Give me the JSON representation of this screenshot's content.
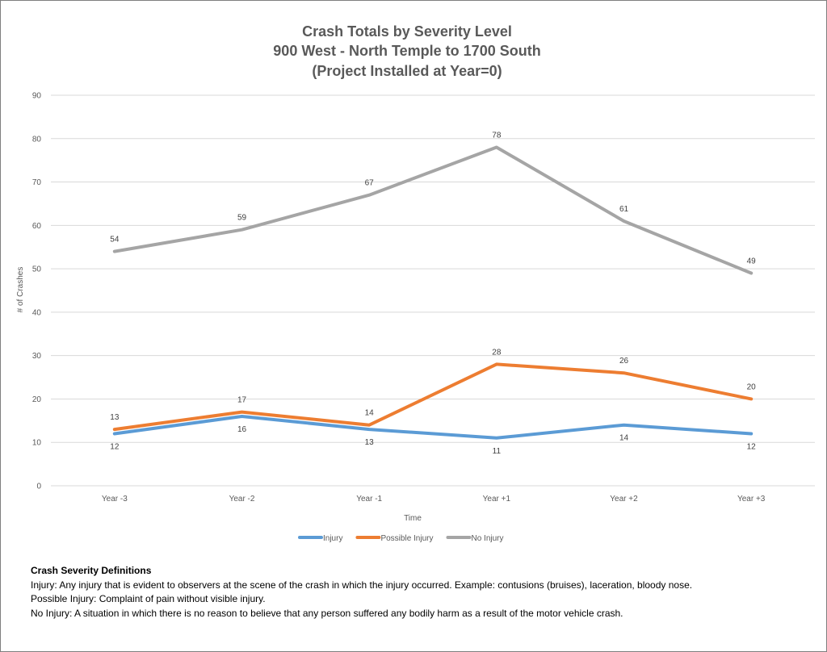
{
  "chart_data": {
    "type": "line",
    "title": [
      "Crash Totals by Severity Level",
      "900 West - North Temple to 1700 South",
      "(Project Installed at Year=0)"
    ],
    "xlabel": "Time",
    "ylabel": "# of Crashes",
    "categories": [
      "Year -3",
      "Year -2",
      "Year -1",
      "Year +1",
      "Year +2",
      "Year +3"
    ],
    "ylim": [
      0,
      90
    ],
    "yticks": [
      0,
      10,
      20,
      30,
      40,
      50,
      60,
      70,
      80,
      90
    ],
    "grid": true,
    "legend_position": "bottom",
    "series": [
      {
        "name": "Injury",
        "color": "#5b9bd5",
        "label_side": "below",
        "values": [
          12,
          16,
          13,
          11,
          14,
          12
        ]
      },
      {
        "name": "Possible Injury",
        "color": "#ed7d31",
        "label_side": "above",
        "values": [
          13,
          17,
          14,
          28,
          26,
          20
        ]
      },
      {
        "name": "No Injury",
        "color": "#a5a5a5",
        "label_side": "above",
        "values": [
          54,
          59,
          67,
          78,
          61,
          49
        ]
      }
    ]
  },
  "definitions": {
    "heading": "Crash Severity Definitions",
    "items": [
      "Injury: Any injury that is evident to observers at the scene of the crash in which the injury occurred. Example: contusions (bruises), laceration, bloody nose.",
      "Possible Injury: Complaint of pain without visible injury.",
      "No Injury: A situation in which there is no reason to believe that any person suffered any bodily harm as a result of the motor vehicle crash."
    ]
  }
}
